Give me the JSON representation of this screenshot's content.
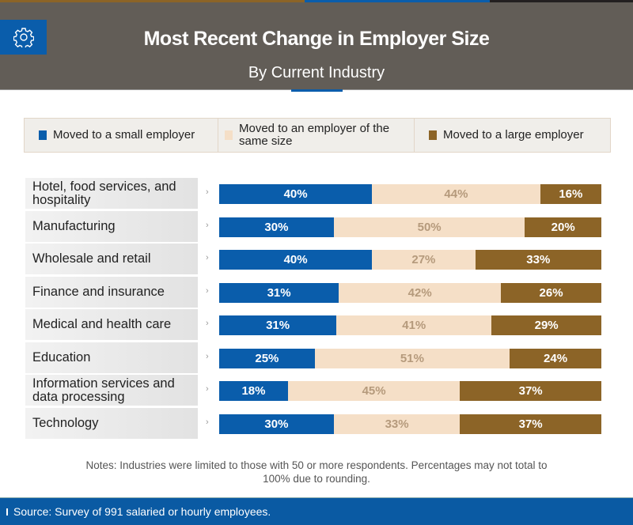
{
  "title": "Most Recent Change in Employer Size",
  "subtitle": "By Current Industry",
  "colors": {
    "small": "#0a5dab",
    "same": "#f5dfc7",
    "large": "#8c6427",
    "header": "#625d57"
  },
  "chart_data": {
    "type": "bar",
    "stacked": true,
    "orientation": "horizontal",
    "categories": [
      "Hotel, food services, and hospitality",
      "Manufacturing",
      "Wholesale and retail",
      "Finance and insurance",
      "Medical and health care",
      "Education",
      "Information services and data processing",
      "Technology"
    ],
    "series": [
      {
        "name": "Moved to a small employer",
        "values": [
          40,
          30,
          40,
          31,
          31,
          25,
          18,
          30
        ]
      },
      {
        "name": "Moved to an employer of the same size",
        "values": [
          44,
          50,
          27,
          42,
          41,
          51,
          45,
          33
        ]
      },
      {
        "name": "Moved to a large employer",
        "values": [
          16,
          20,
          33,
          26,
          29,
          24,
          37,
          37
        ]
      }
    ],
    "unit": "%",
    "legend": "top"
  },
  "notes": "Notes: Industries were limited to those with 50 or more respondents. Percentages may not total to 100% due to rounding.",
  "source": "Source: Survey of 991 salaried or hourly employees."
}
